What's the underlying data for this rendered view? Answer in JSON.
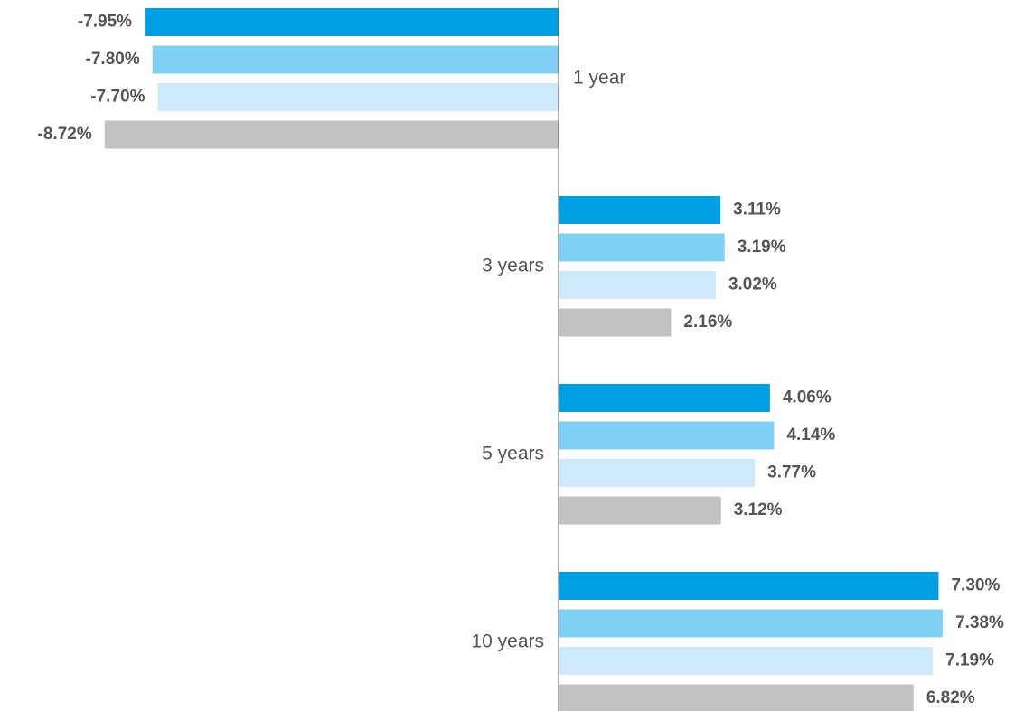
{
  "chart_data": {
    "type": "bar",
    "orientation": "horizontal",
    "categories": [
      "1 year",
      "3 years",
      "5 years",
      "10 years"
    ],
    "series": [
      {
        "color": "#009fe3",
        "values": [
          -7.95,
          3.11,
          4.06,
          7.3
        ],
        "labels": [
          "-7.95%",
          "3.11%",
          "4.06%",
          "7.30%"
        ]
      },
      {
        "color": "#82cff5",
        "values": [
          -7.8,
          3.19,
          4.14,
          7.38
        ],
        "labels": [
          "-7.80%",
          "3.19%",
          "4.14%",
          "7.38%"
        ]
      },
      {
        "color": "#cde9fa",
        "values": [
          -7.7,
          3.02,
          3.77,
          7.19
        ],
        "labels": [
          "-7.70%",
          "3.02%",
          "3.77%",
          "7.19%"
        ]
      },
      {
        "color": "#c2c2c2",
        "values": [
          -8.72,
          2.16,
          3.12,
          6.82
        ],
        "labels": [
          "-8.72%",
          "2.16%",
          "3.12%",
          "6.82%"
        ]
      }
    ],
    "title": "",
    "xlabel": "",
    "ylabel": "",
    "grid": false,
    "legend": "none"
  }
}
